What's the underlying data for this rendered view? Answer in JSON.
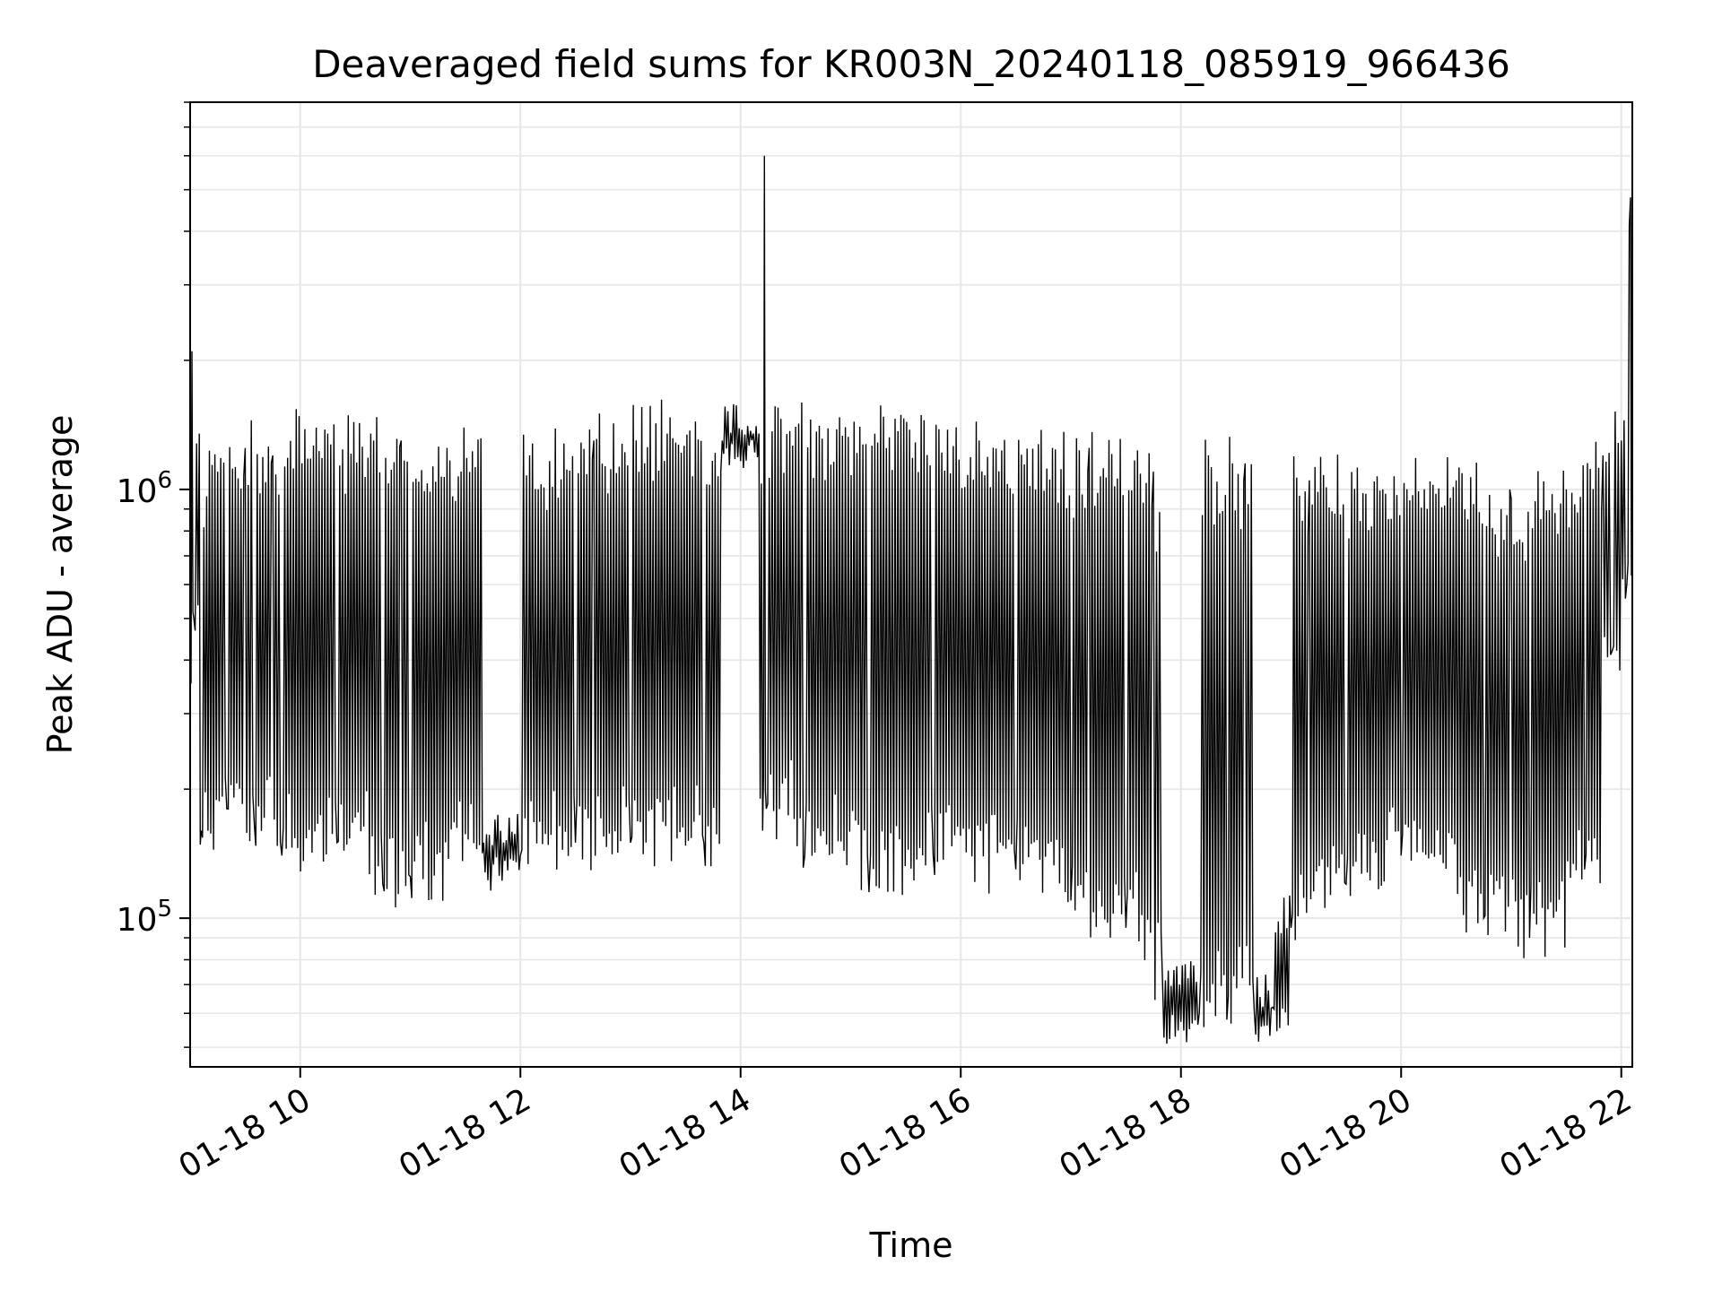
{
  "chart_data": {
    "type": "line",
    "title": "Deaveraged field sums for KR003N_20240118_085919_966436",
    "xlabel": "Time",
    "ylabel": "Peak ADU - average",
    "x_axis": {
      "kind": "datetime",
      "range": [
        "2024-01-18T09:00",
        "2024-01-18T22:06"
      ],
      "ticks": [
        "2024-01-18T10:00",
        "2024-01-18T12:00",
        "2024-01-18T14:00",
        "2024-01-18T16:00",
        "2024-01-18T18:00",
        "2024-01-18T20:00",
        "2024-01-18T22:00"
      ],
      "tick_labels": [
        "01-18 10",
        "01-18 12",
        "01-18 14",
        "01-18 16",
        "01-18 18",
        "01-18 20",
        "01-18 22"
      ]
    },
    "y_axis": {
      "scale": "log",
      "range": [
        45000,
        8000000
      ],
      "major_ticks": [
        100000,
        1000000
      ],
      "tick_labels": [
        {
          "base": "10",
          "exp": "5"
        },
        {
          "base": "10",
          "exp": "6"
        }
      ]
    },
    "grid": true,
    "legend": "none",
    "line_color": "#000000",
    "series": [
      {
        "points": [
          [
            "2024-01-18T09:00",
            380000
          ],
          [
            "2024-01-18T09:01",
            2100000
          ],
          [
            "2024-01-18T09:02",
            500000
          ],
          [
            "2024-01-18T09:05",
            1350000
          ],
          [
            "2024-01-18T09:06",
            160000
          ],
          [
            "2024-01-18T09:15",
            1100000
          ],
          [
            "2024-01-18T09:20",
            180000
          ],
          [
            "2024-01-18T09:30",
            1250000
          ],
          [
            "2024-01-18T09:35",
            165000
          ],
          [
            "2024-01-18T09:45",
            1200000
          ],
          [
            "2024-01-18T09:50",
            140000
          ],
          [
            "2024-01-18T10:15",
            1350000
          ],
          [
            "2024-01-18T10:20",
            150000
          ],
          [
            "2024-01-18T10:40",
            1300000
          ],
          [
            "2024-01-18T10:45",
            120000
          ],
          [
            "2024-01-18T10:55",
            1300000
          ],
          [
            "2024-01-18T11:00",
            125000
          ],
          [
            "2024-01-18T11:20",
            1250000
          ],
          [
            "2024-01-18T11:40",
            150000
          ],
          [
            "2024-01-18T12:00",
            140000
          ],
          [
            "2024-01-18T12:05",
            1200000
          ],
          [
            "2024-01-18T12:30",
            150000
          ],
          [
            "2024-01-18T12:40",
            1300000
          ],
          [
            "2024-01-18T13:00",
            150000
          ],
          [
            "2024-01-18T13:20",
            1350000
          ],
          [
            "2024-01-18T13:40",
            150000
          ],
          [
            "2024-01-18T13:50",
            1300000
          ],
          [
            "2024-01-18T14:10",
            1350000
          ],
          [
            "2024-01-18T14:12",
            160000
          ],
          [
            "2024-01-18T14:13",
            6000000
          ],
          [
            "2024-01-18T14:14",
            180000
          ],
          [
            "2024-01-18T14:30",
            1400000
          ],
          [
            "2024-01-18T14:35",
            140000
          ],
          [
            "2024-01-18T15:05",
            1400000
          ],
          [
            "2024-01-18T15:10",
            115000
          ],
          [
            "2024-01-18T15:40",
            1450000
          ],
          [
            "2024-01-18T15:45",
            140000
          ],
          [
            "2024-01-18T16:10",
            1300000
          ],
          [
            "2024-01-18T16:30",
            130000
          ],
          [
            "2024-01-18T16:50",
            1250000
          ],
          [
            "2024-01-18T17:00",
            110000
          ],
          [
            "2024-01-18T17:10",
            1250000
          ],
          [
            "2024-01-18T17:30",
            95000
          ],
          [
            "2024-01-18T17:45",
            1100000
          ],
          [
            "2024-01-18T17:50",
            70000
          ],
          [
            "2024-01-18T18:10",
            60000
          ],
          [
            "2024-01-18T18:15",
            1200000
          ],
          [
            "2024-01-18T18:25",
            58000
          ],
          [
            "2024-01-18T18:35",
            1150000
          ],
          [
            "2024-01-18T18:40",
            60000
          ],
          [
            "2024-01-18T18:50",
            62000
          ],
          [
            "2024-01-18T19:00",
            95000
          ],
          [
            "2024-01-18T19:10",
            1050000
          ],
          [
            "2024-01-18T19:30",
            120000
          ],
          [
            "2024-01-18T19:50",
            1000000
          ],
          [
            "2024-01-18T20:00",
            140000
          ],
          [
            "2024-01-18T20:30",
            1050000
          ],
          [
            "2024-01-18T20:45",
            100000
          ],
          [
            "2024-01-18T21:00",
            950000
          ],
          [
            "2024-01-18T21:10",
            90000
          ],
          [
            "2024-01-18T21:30",
            1000000
          ],
          [
            "2024-01-18T21:40",
            130000
          ],
          [
            "2024-01-18T21:50",
            1200000
          ],
          [
            "2024-01-18T21:55",
            420000
          ],
          [
            "2024-01-18T22:00",
            1300000
          ],
          [
            "2024-01-18T22:03",
            600000
          ],
          [
            "2024-01-18T22:05",
            4800000
          ],
          [
            "2024-01-18T22:06",
            750000
          ]
        ]
      }
    ]
  }
}
